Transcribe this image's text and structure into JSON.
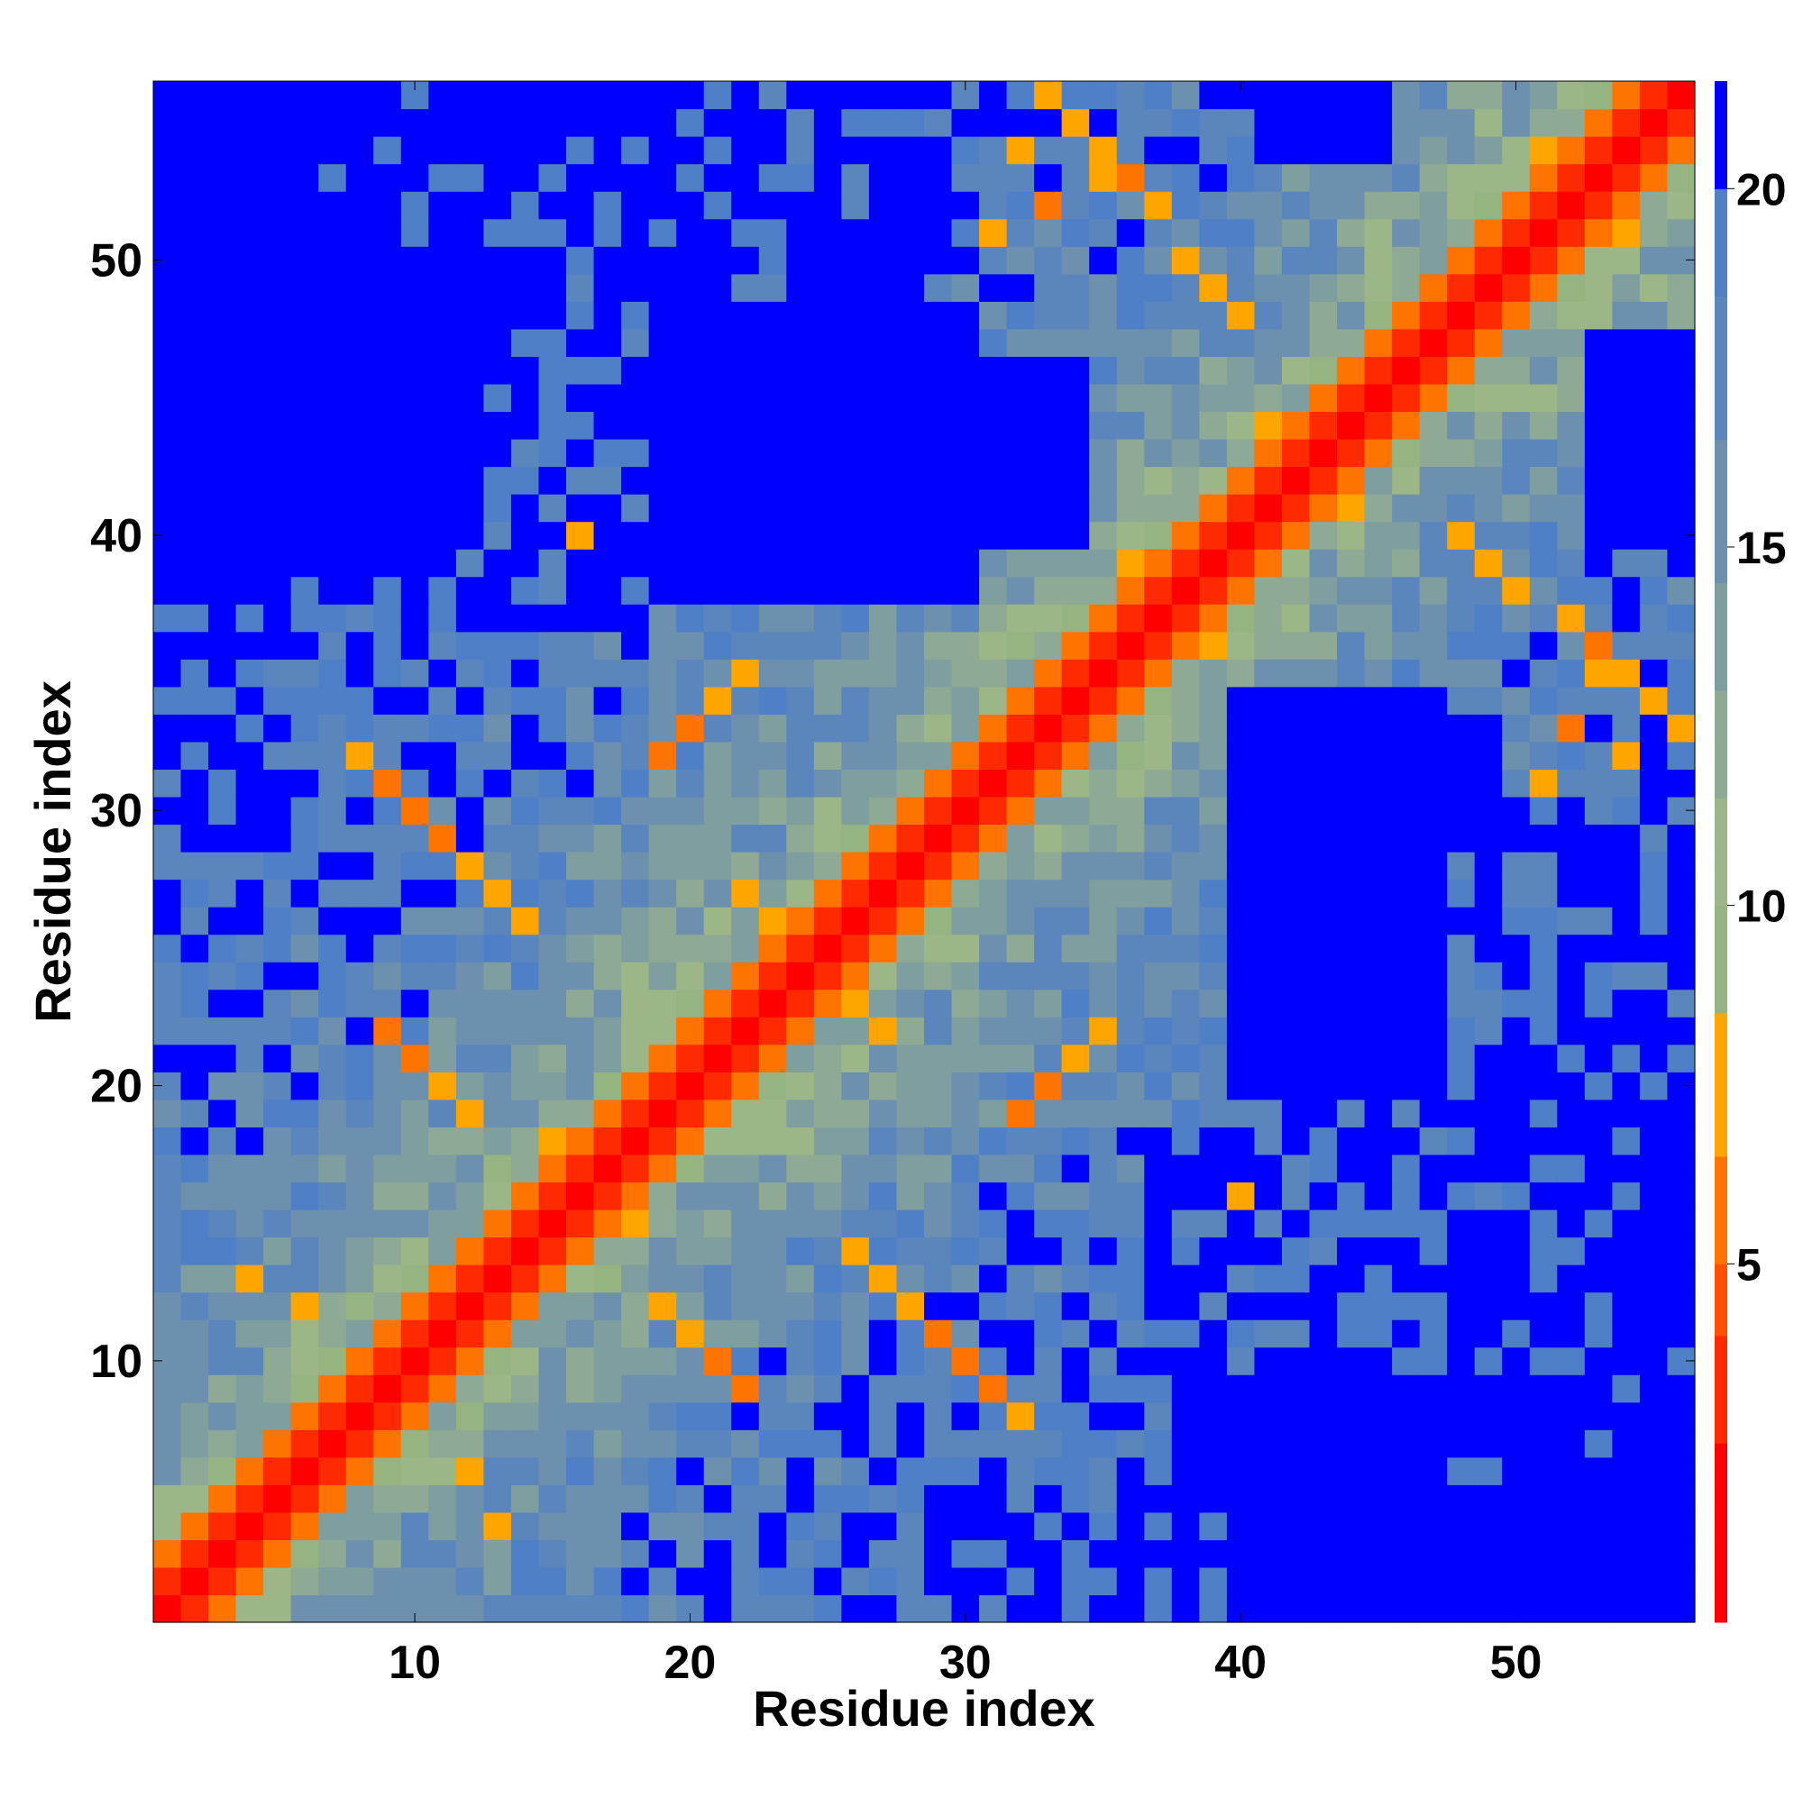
{
  "chart_data": {
    "type": "heatmap",
    "title": "",
    "xlabel": "Residue index",
    "ylabel": "Residue index",
    "xlim": [
      0.5,
      56.5
    ],
    "ylim": [
      0.5,
      56.5
    ],
    "x_ticks": [
      10,
      20,
      30,
      40,
      50
    ],
    "y_ticks": [
      10,
      20,
      30,
      40,
      50
    ],
    "grid": false,
    "n_residues": 56,
    "value_description": "pairwise residue distance; diagonal band is lowest, far off-diagonal regions saturate at the top of the scale",
    "colorbar": {
      "ticks": [
        5,
        10,
        15,
        20
      ],
      "range": [
        0,
        21.5
      ],
      "palette": [
        {
          "max": 2.5,
          "color": "#ff0000"
        },
        {
          "max": 4.0,
          "color": "#ff2a00"
        },
        {
          "max": 5.0,
          "color": "#ff4f00"
        },
        {
          "max": 6.5,
          "color": "#ff7300"
        },
        {
          "max": 8.5,
          "color": "#ffa500"
        },
        {
          "max": 10.0,
          "color": "#96b482"
        },
        {
          "max": 11.5,
          "color": "#9cb687"
        },
        {
          "max": 13.0,
          "color": "#8eaa94"
        },
        {
          "max": 14.5,
          "color": "#7e9ea0"
        },
        {
          "max": 16.5,
          "color": "#6d90ae"
        },
        {
          "max": 18.5,
          "color": "#5b85bd"
        },
        {
          "max": 20.0,
          "color": "#4f7fc6"
        },
        {
          "max": 99,
          "color": "#0000ff"
        }
      ]
    },
    "near_contacts": [
      {
        "i": 8,
        "j": 32,
        "d": 6.8
      },
      {
        "i": 9,
        "j": 31,
        "d": 5.9
      },
      {
        "i": 10,
        "j": 30,
        "d": 6.4
      },
      {
        "i": 11,
        "j": 29,
        "d": 6.0
      },
      {
        "i": 12,
        "j": 28,
        "d": 6.9
      },
      {
        "i": 13,
        "j": 27,
        "d": 7.2
      },
      {
        "i": 14,
        "j": 26,
        "d": 7.8
      },
      {
        "i": 9,
        "j": 22,
        "d": 6.5
      },
      {
        "i": 10,
        "j": 21,
        "d": 6.2
      },
      {
        "i": 11,
        "j": 20,
        "d": 6.9
      },
      {
        "i": 12,
        "j": 19,
        "d": 7.6
      },
      {
        "i": 19,
        "j": 32,
        "d": 6.5
      },
      {
        "i": 20,
        "j": 33,
        "d": 6.1
      },
      {
        "i": 21,
        "j": 34,
        "d": 6.7
      },
      {
        "i": 22,
        "j": 35,
        "d": 7.3
      },
      {
        "i": 24,
        "j": 25,
        "d": 6.0
      },
      {
        "i": 23,
        "j": 26,
        "d": 6.6
      },
      {
        "i": 22,
        "j": 27,
        "d": 7.4
      },
      {
        "i": 37,
        "j": 52,
        "d": 6.8
      },
      {
        "i": 36,
        "j": 53,
        "d": 6.3
      },
      {
        "i": 35,
        "j": 54,
        "d": 6.9
      },
      {
        "i": 34,
        "j": 55,
        "d": 7.2
      },
      {
        "i": 33,
        "j": 56,
        "d": 7.7
      },
      {
        "i": 38,
        "j": 50,
        "d": 7.5
      },
      {
        "i": 39,
        "j": 49,
        "d": 6.6
      },
      {
        "i": 40,
        "j": 48,
        "d": 7.1
      },
      {
        "i": 51,
        "j": 31,
        "d": 7.0
      },
      {
        "i": 52,
        "j": 33,
        "d": 6.5
      },
      {
        "i": 53,
        "j": 35,
        "d": 7.1
      },
      {
        "i": 54,
        "j": 32,
        "d": 7.4
      },
      {
        "i": 55,
        "j": 34,
        "d": 7.8
      },
      {
        "i": 12,
        "j": 6,
        "d": 7.3
      },
      {
        "i": 13,
        "j": 4,
        "d": 7.9
      },
      {
        "i": 16,
        "j": 40,
        "d": 8.0
      }
    ],
    "far_regions": [
      {
        "i": [
          1,
          6
        ],
        "j": [
          39,
          56
        ],
        "d": 22
      },
      {
        "i": [
          7,
          9
        ],
        "j": [
          42,
          50
        ],
        "d": 22
      },
      {
        "i": [
          40,
          56
        ],
        "j": [
          1,
          5
        ],
        "d": 22
      },
      {
        "i": [
          7,
          12
        ],
        "j": [
          40,
          50
        ],
        "d": 22
      },
      {
        "i": [
          19,
          30
        ],
        "j": [
          38,
          48
        ],
        "d": 22
      },
      {
        "i": [
          24,
          28
        ],
        "j": [
          42,
          51
        ],
        "d": 22
      },
      {
        "i": [
          30,
          34
        ],
        "j": [
          40,
          46
        ],
        "d": 22
      },
      {
        "i": [
          40,
          47
        ],
        "j": [
          20,
          34
        ],
        "d": 22
      },
      {
        "i": [
          43,
          49
        ],
        "j": [
          29,
          33
        ],
        "d": 22
      },
      {
        "i": [
          53,
          56
        ],
        "j": [
          40,
          47
        ],
        "d": 22
      },
      {
        "i": [
          38,
          46
        ],
        "j": [
          6,
          9
        ],
        "d": 22
      },
      {
        "i": [
          41,
          45
        ],
        "j": [
          54,
          56
        ],
        "d": 22
      }
    ]
  }
}
